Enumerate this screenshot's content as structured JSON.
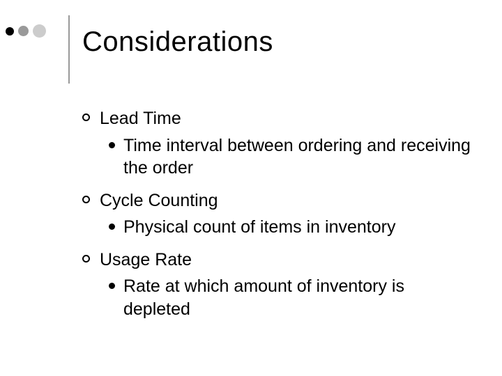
{
  "slide": {
    "background_color": "#ffffff",
    "text_color": "#000000",
    "title": "Considerations",
    "title_fontsize": 40,
    "body_fontsize": 25,
    "decorator": {
      "dots": [
        {
          "size": 12,
          "color": "#000000"
        },
        {
          "size": 15,
          "color": "#999999"
        },
        {
          "size": 19,
          "color": "#cccccc"
        }
      ],
      "vline_color": "#999999"
    },
    "bullets": [
      {
        "label": "Lead Time",
        "sub": [
          "Time interval between ordering and receiving the order"
        ]
      },
      {
        "label": "Cycle Counting",
        "sub": [
          "Physical count of items in inventory"
        ]
      },
      {
        "label": "Usage Rate",
        "sub": [
          "Rate at which amount of inventory is depleted"
        ]
      }
    ]
  }
}
